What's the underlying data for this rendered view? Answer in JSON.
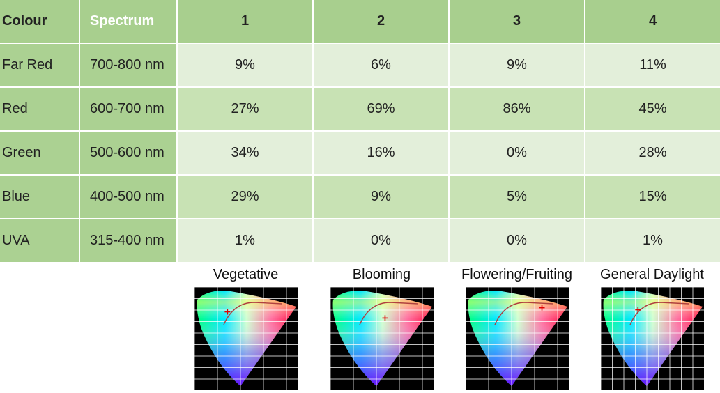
{
  "table": {
    "headers": [
      "Colour",
      "Spectrum",
      "1",
      "2",
      "3",
      "4"
    ],
    "rows": [
      {
        "colour": "Far Red",
        "spectrum": "700-800 nm",
        "values": [
          "9%",
          "6%",
          "9%",
          "11%"
        ]
      },
      {
        "colour": "Red",
        "spectrum": "600-700 nm",
        "values": [
          "27%",
          "69%",
          "86%",
          "45%"
        ]
      },
      {
        "colour": "Green",
        "spectrum": "500-600 nm",
        "values": [
          "34%",
          "16%",
          "0%",
          "28%"
        ]
      },
      {
        "colour": "Blue",
        "spectrum": "400-500 nm",
        "values": [
          "29%",
          "9%",
          "5%",
          "15%"
        ]
      },
      {
        "colour": "UVA",
        "spectrum": "315-400 nm",
        "values": [
          "1%",
          "0%",
          "0%",
          "1%"
        ]
      }
    ]
  },
  "panels": [
    {
      "label": "Vegetative",
      "marker": [
        0.32,
        0.24
      ]
    },
    {
      "label": "Blooming",
      "marker": [
        0.53,
        0.3
      ]
    },
    {
      "label": "Flowering/Fruiting",
      "marker": [
        0.74,
        0.2
      ]
    },
    {
      "label": "General Daylight",
      "marker": [
        0.36,
        0.22
      ]
    }
  ],
  "colors": {
    "header_bg": "#a8cf8e",
    "label_col_bg": "#abd192",
    "row_light": "#e3efda",
    "row_mid": "#c8e2b4"
  }
}
